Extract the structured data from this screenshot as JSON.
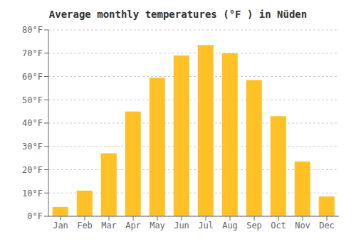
{
  "chart_data": {
    "type": "bar",
    "title": "Average monthly temperatures (°F ) in Nüden",
    "categories": [
      "Jan",
      "Feb",
      "Mar",
      "Apr",
      "May",
      "Jun",
      "Jul",
      "Aug",
      "Sep",
      "Oct",
      "Nov",
      "Dec"
    ],
    "values": [
      4,
      11,
      27,
      45,
      59.5,
      69,
      73.5,
      70,
      58.5,
      43,
      23.5,
      8.5
    ],
    "color": "#FFC125",
    "ylim": [
      0,
      80
    ],
    "yticks": [
      {
        "value": 0,
        "label": "0°F"
      },
      {
        "value": 10,
        "label": "10°F"
      },
      {
        "value": 20,
        "label": "20°F"
      },
      {
        "value": 30,
        "label": "30°F"
      },
      {
        "value": 40,
        "label": "40°F"
      },
      {
        "value": 50,
        "label": "50°F"
      },
      {
        "value": 60,
        "label": "60°F"
      },
      {
        "value": 70,
        "label": "70°F"
      },
      {
        "value": 80,
        "label": "80°F"
      }
    ],
    "grid": true
  }
}
